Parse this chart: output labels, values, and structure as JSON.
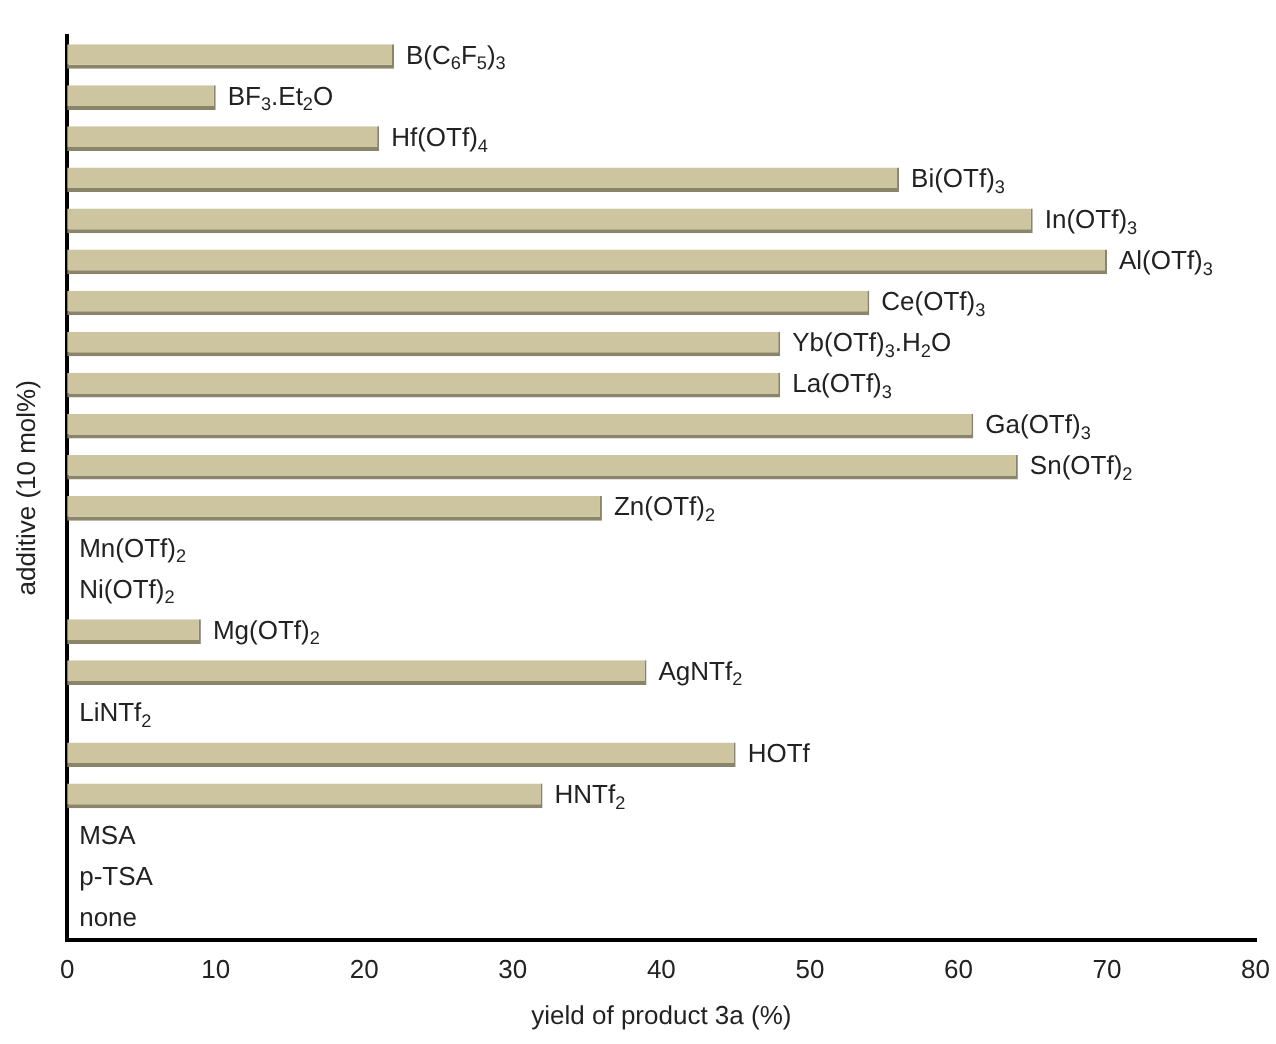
{
  "chart_data": {
    "type": "bar",
    "orientation": "horizontal",
    "xlabel": "yield of product 3a (%)",
    "ylabel": "additive (10 mol%)",
    "categories": [
      "B(C$_{6}$F$_{5}$)$_{3}$",
      "BF$_{3}$.Et$_{2}$O",
      "Hf(OTf)$_{4}$",
      "Bi(OTf)$_{3}$",
      "In(OTf)$_{3}$",
      "Al(OTf)$_{3}$",
      "Ce(OTf)$_{3}$",
      "Yb(OTf)$_{3}$.H$_{2}$O",
      "La(OTf)$_{3}$",
      "Ga(OTf)$_{3}$",
      "Sn(OTf)$_{2}$",
      "Zn(OTf)$_{2}$",
      "Mn(OTf)$_{2}$",
      "Ni(OTf)$_{2}$",
      "Mg(OTf)$_{2}$",
      "AgNTf$_{2}$",
      "LiNTf$_{2}$",
      "HOTf",
      "HNTf$_{2}$",
      "MSA",
      "p-TSA",
      "none"
    ],
    "values": [
      22,
      10,
      21,
      56,
      65,
      70,
      54,
      48,
      48,
      61,
      64,
      36,
      0,
      0,
      9,
      39,
      0,
      45,
      32,
      0,
      0,
      0
    ],
    "color": "#cdc59f",
    "xlim": [
      0,
      80
    ],
    "xticks": [
      0,
      10,
      20,
      30,
      40,
      50,
      60,
      70,
      80
    ],
    "grid": false,
    "legend": false
  }
}
